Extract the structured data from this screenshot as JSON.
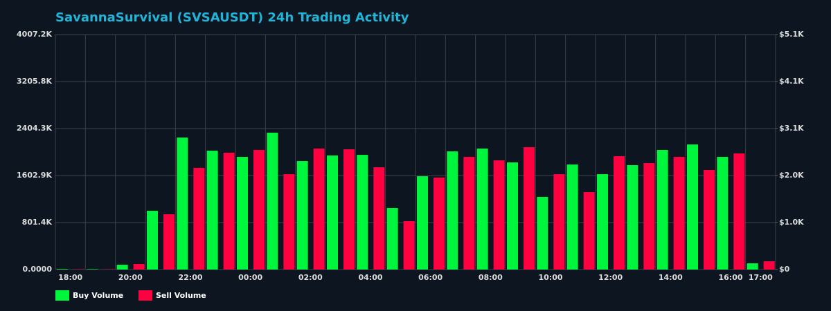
{
  "chart_data": {
    "type": "bar",
    "title": "SavannaSurvival (SVSAUSDT) 24h Trading Activity",
    "categories": [
      "18:00",
      null,
      "20:00",
      null,
      "22:00",
      null,
      "00:00",
      null,
      "02:00",
      null,
      "04:00",
      null,
      "06:00",
      null,
      "08:00",
      null,
      "10:00",
      null,
      "12:00",
      null,
      "14:00",
      null,
      "16:00",
      "17:00"
    ],
    "series": [
      {
        "name": "Buy Volume",
        "color": "#00f53d",
        "values": [
          10000,
          8000,
          82000,
          1002000,
          2251000,
          2027000,
          1921000,
          2334000,
          1850000,
          1945000,
          1956000,
          1049000,
          1591000,
          2015000,
          2063000,
          1827000,
          1238000,
          1791000,
          1626000,
          1780000,
          2039000,
          2133000,
          1921000,
          106000
        ]
      },
      {
        "name": "Sell Volume",
        "color": "#ff0040",
        "values": [
          5000,
          5000,
          94000,
          943000,
          1733000,
          1992000,
          2039000,
          1626000,
          2063000,
          2051000,
          1744000,
          825000,
          1568000,
          1921000,
          1862000,
          2086000,
          1626000,
          1320000,
          1933000,
          1815000,
          1921000,
          1697000,
          1980000,
          141000
        ]
      }
    ],
    "ylim": [
      0,
      4007200
    ],
    "yticks": [
      {
        "value": 0,
        "label": "0.0000"
      },
      {
        "value": 801440,
        "label": "801.4K"
      },
      {
        "value": 1602880,
        "label": "1602.9K"
      },
      {
        "value": 2404320,
        "label": "2404.3K"
      },
      {
        "value": 3205760,
        "label": "3205.8K"
      },
      {
        "value": 4007200,
        "label": "4007.2K"
      }
    ],
    "y2lim": [
      0,
      5100
    ],
    "y2ticks": [
      {
        "value": 0,
        "label": "$0"
      },
      {
        "value": 1020,
        "label": "$1.0K"
      },
      {
        "value": 2040,
        "label": "$2.0K"
      },
      {
        "value": 3060,
        "label": "$3.1K"
      },
      {
        "value": 4080,
        "label": "$4.1K"
      },
      {
        "value": 5100,
        "label": "$5.1K"
      }
    ],
    "grid": true,
    "legend": "bottom-left"
  }
}
